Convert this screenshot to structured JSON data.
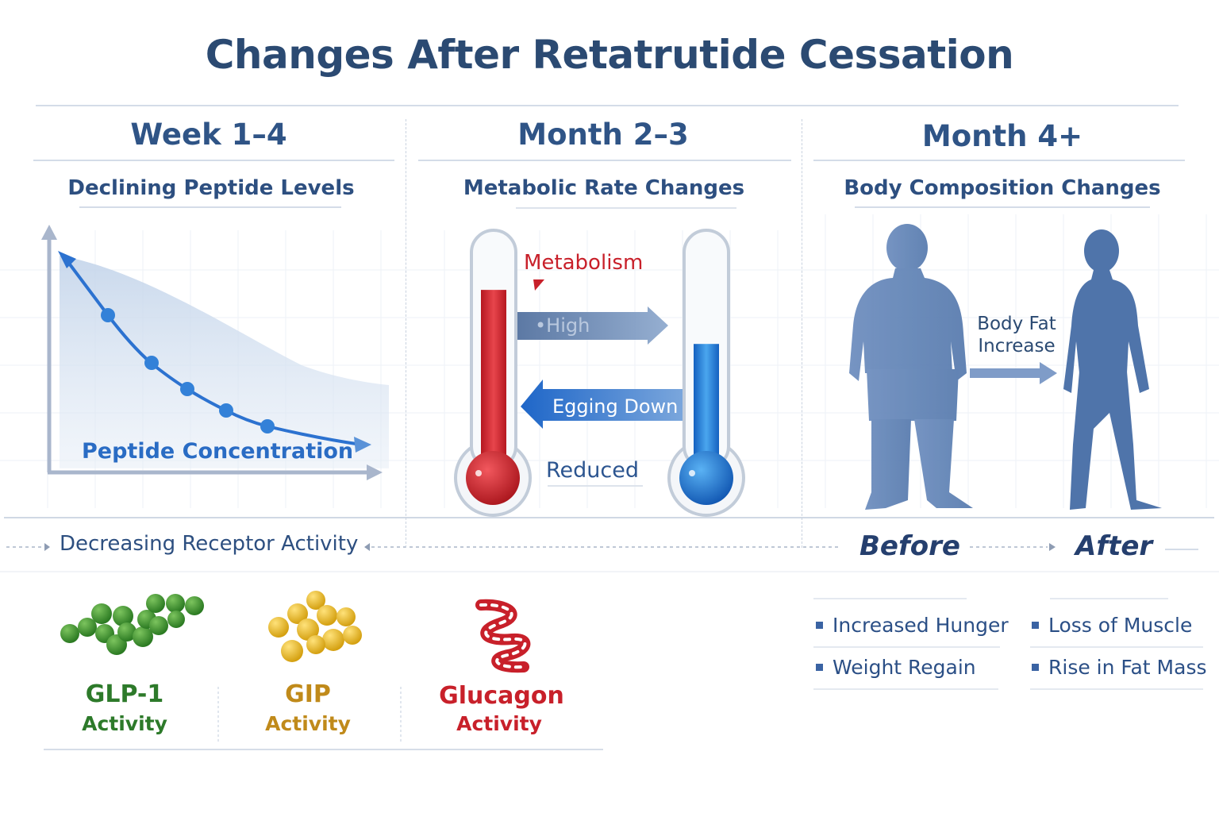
{
  "title": "Changes After Retatrutide Cessation",
  "columns": [
    {
      "header": "Week 1–4",
      "subheader": "Declining Peptide Levels"
    },
    {
      "header": "Month 2–3",
      "subheader": "Metabolic Rate Changes"
    },
    {
      "header": "Month 4+",
      "subheader": "Body Composition Changes"
    }
  ],
  "peptide_chart": {
    "label": "Peptide Concentration",
    "trend": "declining"
  },
  "metabolism": {
    "label": "Metabolism",
    "high_label": "•High",
    "going_down_label": "Egging Down",
    "reduced_label": "Reduced",
    "before_level_percent": 78,
    "after_level_percent": 55,
    "colors": {
      "high": "#d42a32",
      "low": "#1f74d4"
    }
  },
  "body": {
    "arrow_label_line1": "Body Fat",
    "arrow_label_line2": "Increase",
    "before_label": "Before",
    "after_label": "After"
  },
  "receptor_row_label": "Decreasing Receptor Activity",
  "receptors": [
    {
      "name": "GLP-1",
      "activity": "Activity",
      "color": "#2d7a2a",
      "icon": "green-molecule-cluster-icon"
    },
    {
      "name": "GIP",
      "activity": "Activity",
      "color": "#c08a1a",
      "icon": "gold-molecule-cluster-icon"
    },
    {
      "name": "Glucagon",
      "activity": "Activity",
      "color": "#c8202a",
      "icon": "red-helix-icon"
    }
  ],
  "effects": [
    "Increased Hunger",
    "Loss of Muscle",
    "Weight Regain",
    "Rise in Fat Mass"
  ]
}
